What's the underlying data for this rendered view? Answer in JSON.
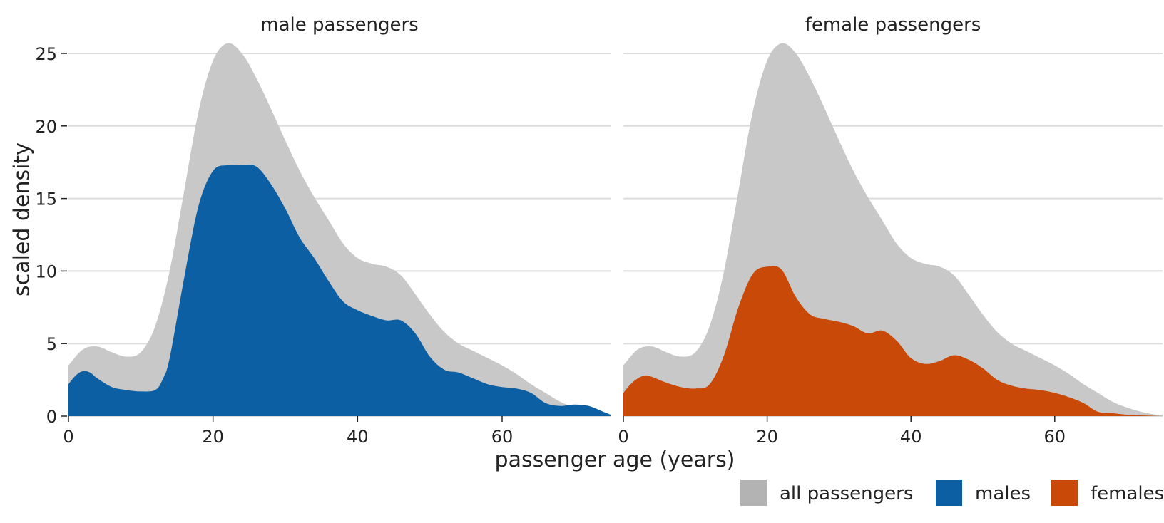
{
  "chart_data": {
    "type": "area",
    "ylabel": "scaled density",
    "xlabel": "passenger age (years)",
    "xlim": [
      0,
      75
    ],
    "ylim": [
      0,
      25
    ],
    "x_ticks": [
      0,
      20,
      40,
      60
    ],
    "y_ticks": [
      0,
      5,
      10,
      15,
      20,
      25
    ],
    "grid": "horizontal",
    "legend_position": "bottom-right",
    "legend": [
      {
        "label": "all passengers",
        "color": "#b3b3b3"
      },
      {
        "label": "males",
        "color": "#0c5fa3"
      },
      {
        "label": "females",
        "color": "#c94a08"
      }
    ],
    "panels": [
      {
        "title": "male passengers",
        "series": [
          {
            "name": "all passengers",
            "color": "#c8c8c8",
            "x": [
              0,
              2,
              4,
              6,
              8,
              10,
              12,
              14,
              16,
              18,
              20,
              22,
              24,
              26,
              28,
              30,
              32,
              34,
              36,
              38,
              40,
              42,
              44,
              46,
              48,
              50,
              52,
              54,
              56,
              58,
              60,
              62,
              64,
              66,
              68,
              70,
              72,
              74,
              75
            ],
            "values": [
              3.5,
              4.6,
              4.8,
              4.4,
              4.1,
              4.4,
              6.2,
              10.0,
              15.5,
              21.0,
              24.5,
              25.7,
              25.0,
              23.3,
              21.2,
              19.0,
              16.9,
              15.1,
              13.5,
              11.9,
              10.9,
              10.5,
              10.3,
              9.7,
              8.4,
              7.0,
              5.8,
              5.0,
              4.5,
              4.0,
              3.5,
              2.9,
              2.2,
              1.6,
              1.0,
              0.6,
              0.3,
              0.1,
              0.1
            ]
          },
          {
            "name": "males",
            "color": "#0c5fa3",
            "x": [
              0,
              1,
              2,
              3,
              4,
              6,
              8,
              10,
              12,
              13,
              14,
              16,
              18,
              20,
              22,
              24,
              26,
              28,
              30,
              32,
              34,
              36,
              38,
              40,
              42,
              44,
              46,
              48,
              50,
              52,
              54,
              56,
              58,
              60,
              62,
              64,
              66,
              68,
              70,
              72,
              74,
              75
            ],
            "values": [
              2.2,
              2.8,
              3.1,
              3.0,
              2.6,
              2.0,
              1.8,
              1.7,
              1.8,
              2.5,
              4.0,
              9.5,
              14.5,
              16.9,
              17.3,
              17.3,
              17.2,
              16.0,
              14.3,
              12.3,
              10.9,
              9.3,
              7.9,
              7.3,
              6.9,
              6.6,
              6.6,
              5.7,
              4.1,
              3.2,
              3.0,
              2.6,
              2.2,
              2.0,
              1.9,
              1.6,
              0.9,
              0.7,
              0.8,
              0.7,
              0.3,
              0.1
            ]
          }
        ]
      },
      {
        "title": "female passengers",
        "series": [
          {
            "name": "all passengers",
            "color": "#c8c8c8",
            "x": [
              0,
              2,
              4,
              6,
              8,
              10,
              12,
              14,
              16,
              18,
              20,
              22,
              24,
              26,
              28,
              30,
              32,
              34,
              36,
              38,
              40,
              42,
              44,
              46,
              48,
              50,
              52,
              54,
              56,
              58,
              60,
              62,
              64,
              66,
              68,
              70,
              72,
              74,
              75
            ],
            "values": [
              3.5,
              4.6,
              4.8,
              4.4,
              4.1,
              4.4,
              6.2,
              10.0,
              15.5,
              21.0,
              24.5,
              25.7,
              25.0,
              23.3,
              21.2,
              19.0,
              16.9,
              15.1,
              13.5,
              11.9,
              10.9,
              10.5,
              10.3,
              9.7,
              8.4,
              7.0,
              5.8,
              5.0,
              4.5,
              4.0,
              3.5,
              2.9,
              2.2,
              1.6,
              1.0,
              0.6,
              0.3,
              0.1,
              0.1
            ]
          },
          {
            "name": "females",
            "color": "#c94a08",
            "x": [
              0,
              1,
              2,
              3,
              4,
              6,
              8,
              10,
              12,
              14,
              16,
              18,
              20,
              22,
              24,
              26,
              28,
              30,
              32,
              34,
              36,
              38,
              40,
              42,
              44,
              46,
              48,
              50,
              52,
              54,
              56,
              58,
              60,
              62,
              64,
              66,
              68,
              70,
              72,
              74,
              75
            ],
            "values": [
              1.6,
              2.2,
              2.6,
              2.8,
              2.7,
              2.3,
              2.0,
              1.9,
              2.2,
              4.2,
              7.5,
              9.8,
              10.3,
              10.1,
              8.2,
              7.0,
              6.7,
              6.5,
              6.2,
              5.7,
              5.9,
              5.2,
              4.0,
              3.6,
              3.8,
              4.2,
              3.9,
              3.3,
              2.5,
              2.1,
              1.9,
              1.8,
              1.6,
              1.3,
              0.9,
              0.3,
              0.2,
              0.1,
              0.05,
              0.02,
              0
            ]
          }
        ]
      }
    ]
  }
}
